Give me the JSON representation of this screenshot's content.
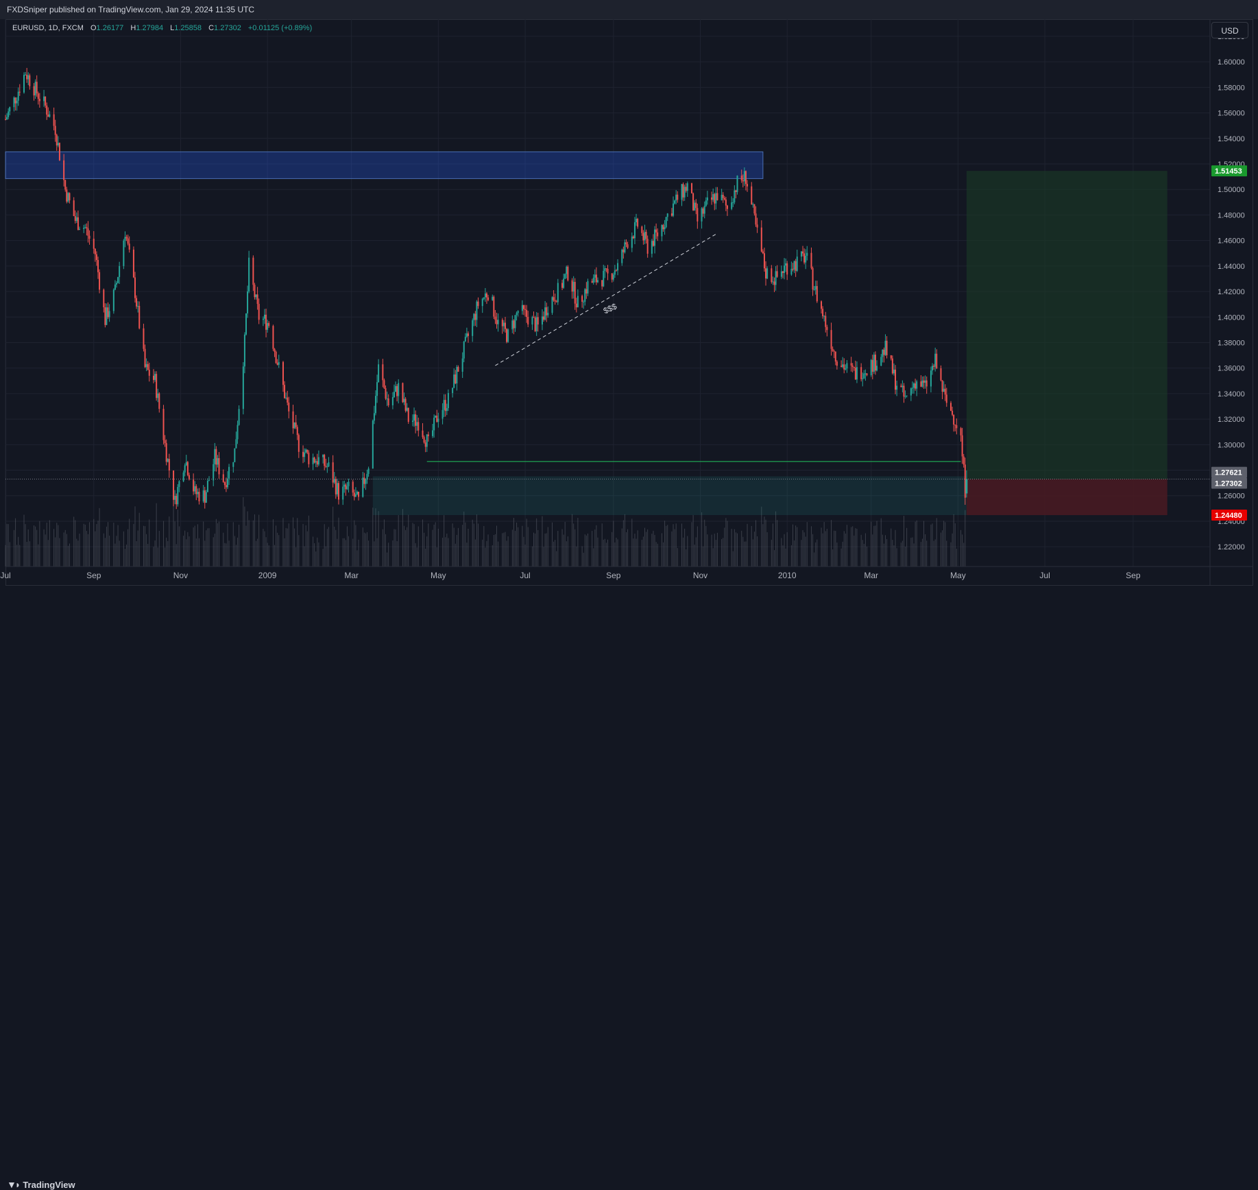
{
  "header": {
    "published_text": "FXDSniper published on TradingView.com, Jan 29, 2024 11:35 UTC"
  },
  "legend": {
    "symbol": "EURUSD, 1D, FXCM",
    "open_label": "O",
    "open": "1.26177",
    "high_label": "H",
    "high": "1.27984",
    "low_label": "L",
    "low": "1.25858",
    "close_label": "C",
    "close": "1.27302",
    "change": "+0.01125 (+0.89%)"
  },
  "currency_button": "USD",
  "footer": {
    "logo_text": "TradingView",
    "logo_icon": "tradingview-logo-icon"
  },
  "colors": {
    "background": "#131722",
    "grid": "#1f2330",
    "up": "#26a69a",
    "down": "#ef5350",
    "resistance_zone": "#2962ff",
    "target_zone": "#1b3a26",
    "stop_zone": "#4a1a22",
    "level_line": "#22c55e",
    "price_badge_green": "#1a9a2e",
    "price_badge_red": "#e60000",
    "price_badge_grey": "#5d606b"
  },
  "chart_data": {
    "type": "candlestick",
    "symbol": "EURUSD",
    "interval": "1D",
    "ylim": [
      1.2045,
      1.6334
    ],
    "y_ticks": [
      1.22,
      1.24,
      1.26,
      1.28,
      1.3,
      1.32,
      1.34,
      1.36,
      1.38,
      1.4,
      1.42,
      1.44,
      1.46,
      1.48,
      1.5,
      1.52,
      1.54,
      1.56,
      1.58,
      1.6,
      1.62
    ],
    "y_tick_labels": [
      "1.22000",
      "1.24000",
      "1.26000",
      "1.28000",
      "1.30000",
      "1.32000",
      "1.34000",
      "1.36000",
      "1.38000",
      "1.40000",
      "1.42000",
      "1.44000",
      "1.46000",
      "1.48000",
      "1.50000",
      "1.52000",
      "1.54000",
      "1.56000",
      "1.58000",
      "1.60000",
      "1.62000"
    ],
    "x_range": [
      "2008-07-01",
      "2010-10-25"
    ],
    "x_ticks": [
      {
        "date": "2008-07-01",
        "label": "Jul"
      },
      {
        "date": "2008-09-01",
        "label": "Sep"
      },
      {
        "date": "2008-11-01",
        "label": "Nov"
      },
      {
        "date": "2009-01-01",
        "label": "2009"
      },
      {
        "date": "2009-03-01",
        "label": "Mar"
      },
      {
        "date": "2009-05-01",
        "label": "May"
      },
      {
        "date": "2009-07-01",
        "label": "Jul"
      },
      {
        "date": "2009-09-01",
        "label": "Sep"
      },
      {
        "date": "2009-11-01",
        "label": "Nov"
      },
      {
        "date": "2010-01-01",
        "label": "2010"
      },
      {
        "date": "2010-03-01",
        "label": "Mar"
      },
      {
        "date": "2010-05-01",
        "label": "May"
      },
      {
        "date": "2010-07-01",
        "label": "Jul"
      },
      {
        "date": "2010-09-01",
        "label": "Sep"
      }
    ],
    "price_path": [
      [
        "2008-07-01",
        1.555
      ],
      [
        "2008-07-08",
        1.572
      ],
      [
        "2008-07-15",
        1.592
      ],
      [
        "2008-07-22",
        1.578
      ],
      [
        "2008-07-29",
        1.565
      ],
      [
        "2008-08-05",
        1.548
      ],
      [
        "2008-08-12",
        1.5
      ],
      [
        "2008-08-19",
        1.476
      ],
      [
        "2008-08-26",
        1.47
      ],
      [
        "2008-09-02",
        1.45
      ],
      [
        "2008-09-09",
        1.398
      ],
      [
        "2008-09-16",
        1.42
      ],
      [
        "2008-09-23",
        1.468
      ],
      [
        "2008-09-30",
        1.42
      ],
      [
        "2008-10-07",
        1.36
      ],
      [
        "2008-10-14",
        1.35
      ],
      [
        "2008-10-21",
        1.3
      ],
      [
        "2008-10-28",
        1.255
      ],
      [
        "2008-11-04",
        1.29
      ],
      [
        "2008-11-11",
        1.262
      ],
      [
        "2008-11-18",
        1.26
      ],
      [
        "2008-11-25",
        1.29
      ],
      [
        "2008-12-02",
        1.27
      ],
      [
        "2008-12-09",
        1.295
      ],
      [
        "2008-12-16",
        1.38
      ],
      [
        "2008-12-19",
        1.44
      ],
      [
        "2008-12-26",
        1.4
      ],
      [
        "2009-01-02",
        1.395
      ],
      [
        "2009-01-09",
        1.36
      ],
      [
        "2009-01-16",
        1.325
      ],
      [
        "2009-01-23",
        1.3
      ],
      [
        "2009-01-30",
        1.29
      ],
      [
        "2009-02-06",
        1.288
      ],
      [
        "2009-02-13",
        1.282
      ],
      [
        "2009-02-20",
        1.262
      ],
      [
        "2009-02-27",
        1.265
      ],
      [
        "2009-03-06",
        1.255
      ],
      [
        "2009-03-13",
        1.285
      ],
      [
        "2009-03-20",
        1.36
      ],
      [
        "2009-03-27",
        1.332
      ],
      [
        "2009-04-03",
        1.345
      ],
      [
        "2009-04-10",
        1.32
      ],
      [
        "2009-04-17",
        1.318
      ],
      [
        "2009-04-24",
        1.3
      ],
      [
        "2009-05-01",
        1.325
      ],
      [
        "2009-05-08",
        1.335
      ],
      [
        "2009-05-15",
        1.36
      ],
      [
        "2009-05-22",
        1.385
      ],
      [
        "2009-05-29",
        1.41
      ],
      [
        "2009-06-05",
        1.42
      ],
      [
        "2009-06-12",
        1.395
      ],
      [
        "2009-06-19",
        1.385
      ],
      [
        "2009-06-26",
        1.405
      ],
      [
        "2009-07-03",
        1.4
      ],
      [
        "2009-07-10",
        1.392
      ],
      [
        "2009-07-17",
        1.41
      ],
      [
        "2009-07-24",
        1.42
      ],
      [
        "2009-07-31",
        1.435
      ],
      [
        "2009-08-07",
        1.41
      ],
      [
        "2009-08-14",
        1.425
      ],
      [
        "2009-08-21",
        1.43
      ],
      [
        "2009-08-28",
        1.432
      ],
      [
        "2009-09-04",
        1.44
      ],
      [
        "2009-09-11",
        1.46
      ],
      [
        "2009-09-18",
        1.472
      ],
      [
        "2009-09-25",
        1.455
      ],
      [
        "2009-10-02",
        1.465
      ],
      [
        "2009-10-09",
        1.48
      ],
      [
        "2009-10-16",
        1.493
      ],
      [
        "2009-10-23",
        1.503
      ],
      [
        "2009-10-30",
        1.475
      ],
      [
        "2009-11-06",
        1.488
      ],
      [
        "2009-11-13",
        1.496
      ],
      [
        "2009-11-20",
        1.485
      ],
      [
        "2009-11-27",
        1.505
      ],
      [
        "2009-12-03",
        1.51
      ],
      [
        "2009-12-10",
        1.47
      ],
      [
        "2009-12-17",
        1.435
      ],
      [
        "2009-12-24",
        1.43
      ],
      [
        "2009-12-31",
        1.44
      ],
      [
        "2010-01-07",
        1.442
      ],
      [
        "2010-01-14",
        1.448
      ],
      [
        "2010-01-21",
        1.42
      ],
      [
        "2010-01-28",
        1.395
      ],
      [
        "2010-02-04",
        1.37
      ],
      [
        "2010-02-11",
        1.36
      ],
      [
        "2010-02-18",
        1.356
      ],
      [
        "2010-02-25",
        1.36
      ],
      [
        "2010-03-04",
        1.365
      ],
      [
        "2010-03-11",
        1.375
      ],
      [
        "2010-03-18",
        1.35
      ],
      [
        "2010-03-25",
        1.335
      ],
      [
        "2010-04-01",
        1.35
      ],
      [
        "2010-04-08",
        1.345
      ],
      [
        "2010-04-15",
        1.365
      ],
      [
        "2010-04-22",
        1.335
      ],
      [
        "2010-04-29",
        1.32
      ],
      [
        "2010-05-03",
        1.305
      ],
      [
        "2010-05-06",
        1.265
      ],
      [
        "2010-05-07",
        1.262
      ]
    ],
    "last_candle": {
      "date": "2010-05-07",
      "open": 1.26177,
      "high": 1.27984,
      "low": 1.25858,
      "close": 1.27302
    },
    "annotations": {
      "resistance_zone": {
        "from": "2008-07-01",
        "to": "2009-12-15",
        "top": 1.5295,
        "bottom": 1.5085
      },
      "trendline": {
        "from_date": "2009-06-10",
        "from_price": 1.362,
        "to_date": "2009-11-12",
        "to_price": 1.465
      },
      "trendline_label": {
        "text": "$$$",
        "date": "2009-08-26",
        "price": 1.41
      },
      "support_line": {
        "from": "2009-04-23",
        "to": "2010-05-03",
        "price": 1.2868
      },
      "demand_zone": {
        "from": "2009-03-16",
        "to": "2010-05-07",
        "top": 1.2752,
        "bottom": 1.2448
      },
      "position": {
        "entry_date": "2010-05-07",
        "end_date": "2010-09-25",
        "target": 1.51453,
        "entry": 1.27302,
        "stop": 1.2448
      }
    },
    "price_badges": [
      {
        "value": 1.51453,
        "label": "1.51453",
        "style": "green"
      },
      {
        "value": 1.27621,
        "label": "1.27621",
        "style": "grey"
      },
      {
        "value": 1.27302,
        "label": "1.27302",
        "style": "grey"
      },
      {
        "value": 1.2448,
        "label": "1.24480",
        "style": "red"
      }
    ],
    "grid": true,
    "volume_panel": true
  }
}
